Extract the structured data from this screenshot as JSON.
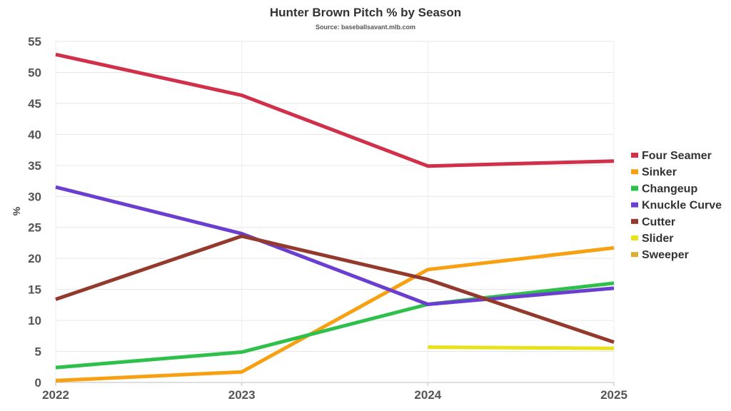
{
  "chart_data": {
    "type": "line",
    "title": "Hunter Brown Pitch % by Season",
    "subtitle": "Source: baseballsavant.mlb.com",
    "xlabel": "",
    "ylabel": "%",
    "x": [
      2022,
      2023,
      2024,
      2025
    ],
    "ylim": [
      0,
      55
    ],
    "yticks": [
      0,
      5,
      10,
      15,
      20,
      25,
      30,
      35,
      40,
      45,
      50,
      55
    ],
    "grid": true,
    "legend_position": "right",
    "series": [
      {
        "name": "Four Seamer",
        "color": "#d0304a",
        "values": [
          52.9,
          46.3,
          34.9,
          35.7
        ]
      },
      {
        "name": "Sinker",
        "color": "#f7a012",
        "values": [
          0.3,
          1.7,
          18.2,
          21.7
        ]
      },
      {
        "name": "Changeup",
        "color": "#2ec04a",
        "values": [
          2.4,
          4.9,
          12.6,
          16.0
        ]
      },
      {
        "name": "Knuckle Curve",
        "color": "#6a3fcf",
        "values": [
          31.5,
          24.0,
          12.6,
          15.2
        ]
      },
      {
        "name": "Cutter",
        "color": "#943a2c",
        "values": [
          13.4,
          23.6,
          16.6,
          6.5
        ]
      },
      {
        "name": "Slider",
        "color": "#e8e21c",
        "values": [
          null,
          null,
          5.7,
          5.5
        ]
      },
      {
        "name": "Sweeper",
        "color": "#d8ae36",
        "values": [
          null,
          null,
          null,
          null
        ]
      }
    ]
  }
}
